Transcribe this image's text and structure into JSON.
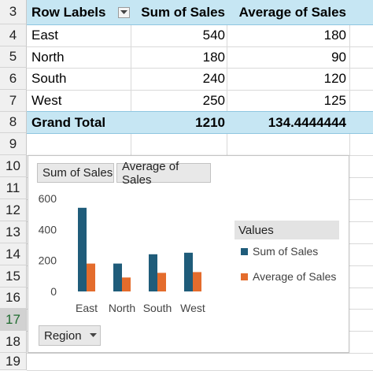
{
  "row_numbers": [
    "3",
    "4",
    "5",
    "6",
    "7",
    "8",
    "9",
    "10",
    "11",
    "12",
    "13",
    "14",
    "15",
    "16",
    "17",
    "18",
    "19"
  ],
  "pivot": {
    "headers": {
      "row_labels": "Row Labels",
      "sum": "Sum of Sales",
      "avg": "Average of Sales"
    },
    "rows": [
      {
        "label": "East",
        "sum": "540",
        "avg": "180"
      },
      {
        "label": "North",
        "sum": "180",
        "avg": "90"
      },
      {
        "label": "South",
        "sum": "240",
        "avg": "120"
      },
      {
        "label": "West",
        "sum": "250",
        "avg": "125"
      }
    ],
    "total": {
      "label": "Grand Total",
      "sum": "1210",
      "avg": "134.4444444"
    }
  },
  "chart": {
    "field_buttons": {
      "sum": "Sum of Sales",
      "avg": "Average of Sales",
      "axis": "Region"
    },
    "legend_title": "Values"
  },
  "chart_data": {
    "type": "bar",
    "categories": [
      "East",
      "North",
      "South",
      "West"
    ],
    "series": [
      {
        "name": "Sum of Sales",
        "values": [
          540,
          180,
          240,
          250
        ],
        "color": "#1f5c7a"
      },
      {
        "name": "Average of Sales",
        "values": [
          180,
          90,
          120,
          125
        ],
        "color": "#e46c2c"
      }
    ],
    "yticks": [
      0,
      200,
      400,
      600
    ],
    "ylim": [
      0,
      600
    ],
    "legend": "right"
  }
}
